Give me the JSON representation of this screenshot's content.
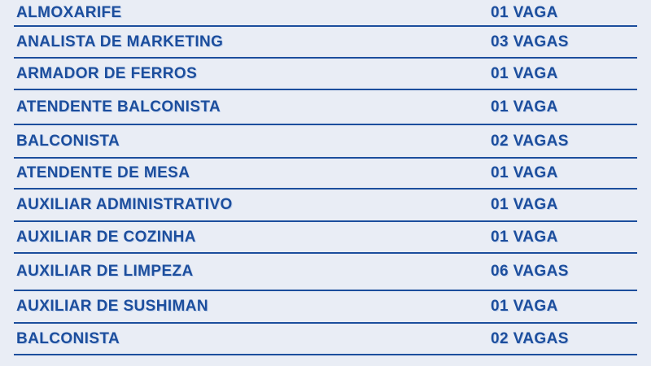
{
  "table": {
    "columns": [
      "position",
      "vacancies"
    ],
    "rows": [
      {
        "position": "ALMOXARIFE",
        "vacancies": "01 VAGA"
      },
      {
        "position": "ANALISTA DE MARKETING",
        "vacancies": "03 VAGAS"
      },
      {
        "position": "ARMADOR DE FERROS",
        "vacancies": "01 VAGA"
      },
      {
        "position": "ATENDENTE BALCONISTA",
        "vacancies": "01 VAGA"
      },
      {
        "position": "BALCONISTA",
        "vacancies": "02 VAGAS"
      },
      {
        "position": "ATENDENTE DE MESA",
        "vacancies": "01 VAGA"
      },
      {
        "position": "AUXILIAR ADMINISTRATIVO",
        "vacancies": "01 VAGA"
      },
      {
        "position": "AUXILIAR DE COZINHA",
        "vacancies": "01 VAGA"
      },
      {
        "position": "AUXILIAR DE LIMPEZA",
        "vacancies": "06 VAGAS"
      },
      {
        "position": "AUXILIAR DE SUSHIMAN",
        "vacancies": "01 VAGA"
      },
      {
        "position": "BALCONISTA",
        "vacancies": "02 VAGAS"
      }
    ],
    "colors": {
      "background": "#e9edf5",
      "text": "#1c4e9d",
      "divider": "#1c4e9d"
    }
  }
}
